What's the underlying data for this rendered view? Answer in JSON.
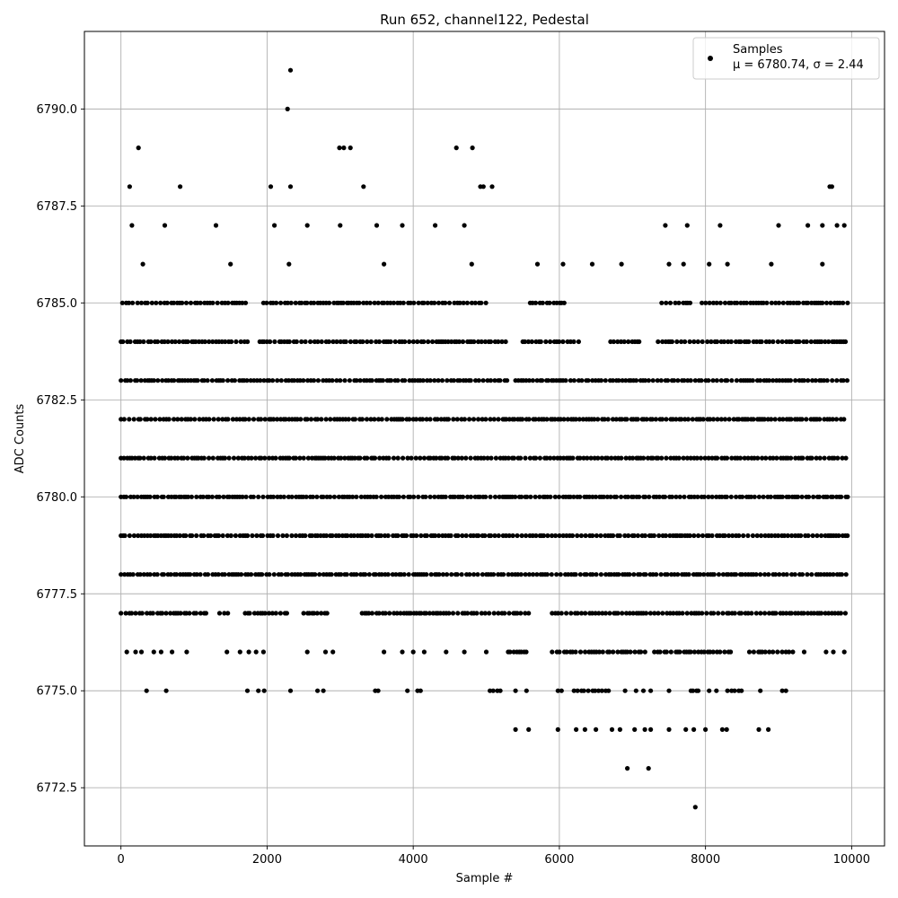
{
  "chart_data": {
    "type": "scatter",
    "title": "Run 652, channel122, Pedestal",
    "xlabel": "Sample #",
    "ylabel": "ADC Counts",
    "xlim": [
      -500,
      10450
    ],
    "ylim": [
      6771.0,
      6792.0
    ],
    "xticks": [
      0,
      2000,
      4000,
      6000,
      8000,
      10000
    ],
    "yticks": [
      6772.5,
      6775.0,
      6777.5,
      6780.0,
      6782.5,
      6785.0,
      6787.5,
      6790.0
    ],
    "xtick_labels": [
      "0",
      "2000",
      "4000",
      "6000",
      "8000",
      "10000"
    ],
    "ytick_labels": [
      "6772.5",
      "6775.0",
      "6777.5",
      "6780.0",
      "6782.5",
      "6785.0",
      "6787.5",
      "6790.0"
    ],
    "grid": true,
    "legend": {
      "placement": "top-right",
      "entry": "Samples",
      "stats_label": "μ = 6780.74, σ = 2.44"
    },
    "marker_color": "#000000",
    "series": [
      {
        "name": "Samples",
        "dense_levels": [
          {
            "y": 6785,
            "x_ranges": [
              [
                20,
                1750
              ],
              [
                1950,
                5000
              ],
              [
                5600,
                6100
              ],
              [
                7400,
                7800
              ],
              [
                7950,
                9950
              ]
            ]
          },
          {
            "y": 6784,
            "x_ranges": [
              [
                0,
                1750
              ],
              [
                1900,
                5300
              ],
              [
                5500,
                6300
              ],
              [
                6700,
                7100
              ],
              [
                7350,
                9950
              ]
            ]
          },
          {
            "y": 6783,
            "x_ranges": [
              [
                0,
                5300
              ],
              [
                5400,
                9950
              ]
            ]
          },
          {
            "y": 6782,
            "x_ranges": [
              [
                0,
                9950
              ]
            ]
          },
          {
            "y": 6781,
            "x_ranges": [
              [
                0,
                9950
              ]
            ]
          },
          {
            "y": 6780,
            "x_ranges": [
              [
                0,
                9950
              ]
            ]
          },
          {
            "y": 6779,
            "x_ranges": [
              [
                0,
                9950
              ]
            ]
          },
          {
            "y": 6778,
            "x_ranges": [
              [
                0,
                9950
              ]
            ]
          },
          {
            "y": 6777,
            "x_ranges": [
              [
                0,
                1200
              ],
              [
                1350,
                1500
              ],
              [
                1700,
                2300
              ],
              [
                2500,
                2850
              ],
              [
                3300,
                5600
              ],
              [
                5900,
                9950
              ]
            ]
          },
          {
            "y": 6776,
            "x_ranges": [
              [
                5300,
                5600
              ],
              [
                5900,
                7200
              ],
              [
                7300,
                8400
              ],
              [
                8600,
                9200
              ]
            ]
          },
          {
            "y": 6775,
            "x_ranges": [
              [
                5050,
                5200
              ],
              [
                6200,
                6700
              ],
              [
                7800,
                7950
              ],
              [
                8300,
                8500
              ]
            ]
          }
        ],
        "points": [
          {
            "x": 300,
            "y": 6786
          },
          {
            "x": 1500,
            "y": 6786
          },
          {
            "x": 2300,
            "y": 6786
          },
          {
            "x": 3600,
            "y": 6786
          },
          {
            "x": 4800,
            "y": 6786
          },
          {
            "x": 5700,
            "y": 6786
          },
          {
            "x": 6050,
            "y": 6786
          },
          {
            "x": 6450,
            "y": 6786
          },
          {
            "x": 6850,
            "y": 6786
          },
          {
            "x": 7500,
            "y": 6786
          },
          {
            "x": 7700,
            "y": 6786
          },
          {
            "x": 8050,
            "y": 6786
          },
          {
            "x": 8300,
            "y": 6786
          },
          {
            "x": 8900,
            "y": 6786
          },
          {
            "x": 9600,
            "y": 6786
          },
          {
            "x": 150,
            "y": 6787
          },
          {
            "x": 600,
            "y": 6787
          },
          {
            "x": 1300,
            "y": 6787
          },
          {
            "x": 2100,
            "y": 6787
          },
          {
            "x": 2550,
            "y": 6787
          },
          {
            "x": 3000,
            "y": 6787
          },
          {
            "x": 3500,
            "y": 6787
          },
          {
            "x": 3850,
            "y": 6787
          },
          {
            "x": 4300,
            "y": 6787
          },
          {
            "x": 4700,
            "y": 6787
          },
          {
            "x": 7450,
            "y": 6787
          },
          {
            "x": 7750,
            "y": 6787
          },
          {
            "x": 8200,
            "y": 6787
          },
          {
            "x": 9000,
            "y": 6787
          },
          {
            "x": 9400,
            "y": 6787
          },
          {
            "x": 9600,
            "y": 6787
          },
          {
            "x": 9800,
            "y": 6787
          },
          {
            "x": 9900,
            "y": 6787
          },
          {
            "x": 120,
            "y": 6788
          },
          {
            "x": 810,
            "y": 6788
          },
          {
            "x": 2050,
            "y": 6788
          },
          {
            "x": 2320,
            "y": 6788
          },
          {
            "x": 3320,
            "y": 6788
          },
          {
            "x": 4920,
            "y": 6788
          },
          {
            "x": 4960,
            "y": 6788
          },
          {
            "x": 5080,
            "y": 6788
          },
          {
            "x": 9700,
            "y": 6788
          },
          {
            "x": 9730,
            "y": 6788
          },
          {
            "x": 240,
            "y": 6789
          },
          {
            "x": 2990,
            "y": 6789
          },
          {
            "x": 3050,
            "y": 6789
          },
          {
            "x": 3140,
            "y": 6789
          },
          {
            "x": 4590,
            "y": 6789
          },
          {
            "x": 4810,
            "y": 6789
          },
          {
            "x": 2280,
            "y": 6790
          },
          {
            "x": 2320,
            "y": 6791
          },
          {
            "x": 350,
            "y": 6775
          },
          {
            "x": 620,
            "y": 6775
          },
          {
            "x": 1730,
            "y": 6775
          },
          {
            "x": 1880,
            "y": 6775
          },
          {
            "x": 1960,
            "y": 6775
          },
          {
            "x": 2320,
            "y": 6775
          },
          {
            "x": 2690,
            "y": 6775
          },
          {
            "x": 2770,
            "y": 6775
          },
          {
            "x": 3480,
            "y": 6775
          },
          {
            "x": 3520,
            "y": 6775
          },
          {
            "x": 3920,
            "y": 6775
          },
          {
            "x": 4060,
            "y": 6775
          },
          {
            "x": 4100,
            "y": 6775
          },
          {
            "x": 5400,
            "y": 6775
          },
          {
            "x": 5550,
            "y": 6775
          },
          {
            "x": 5980,
            "y": 6775
          },
          {
            "x": 6030,
            "y": 6775
          },
          {
            "x": 6900,
            "y": 6775
          },
          {
            "x": 7050,
            "y": 6775
          },
          {
            "x": 7150,
            "y": 6775
          },
          {
            "x": 7250,
            "y": 6775
          },
          {
            "x": 7500,
            "y": 6775
          },
          {
            "x": 8050,
            "y": 6775
          },
          {
            "x": 8150,
            "y": 6775
          },
          {
            "x": 8750,
            "y": 6775
          },
          {
            "x": 9050,
            "y": 6775
          },
          {
            "x": 9100,
            "y": 6775
          },
          {
            "x": 80,
            "y": 6776
          },
          {
            "x": 200,
            "y": 6776
          },
          {
            "x": 280,
            "y": 6776
          },
          {
            "x": 450,
            "y": 6776
          },
          {
            "x": 550,
            "y": 6776
          },
          {
            "x": 700,
            "y": 6776
          },
          {
            "x": 900,
            "y": 6776
          },
          {
            "x": 1450,
            "y": 6776
          },
          {
            "x": 1630,
            "y": 6776
          },
          {
            "x": 1750,
            "y": 6776
          },
          {
            "x": 1850,
            "y": 6776
          },
          {
            "x": 1950,
            "y": 6776
          },
          {
            "x": 2550,
            "y": 6776
          },
          {
            "x": 2800,
            "y": 6776
          },
          {
            "x": 2900,
            "y": 6776
          },
          {
            "x": 3600,
            "y": 6776
          },
          {
            "x": 3850,
            "y": 6776
          },
          {
            "x": 4000,
            "y": 6776
          },
          {
            "x": 4150,
            "y": 6776
          },
          {
            "x": 4450,
            "y": 6776
          },
          {
            "x": 4700,
            "y": 6776
          },
          {
            "x": 5000,
            "y": 6776
          },
          {
            "x": 9350,
            "y": 6776
          },
          {
            "x": 9650,
            "y": 6776
          },
          {
            "x": 9750,
            "y": 6776
          },
          {
            "x": 9900,
            "y": 6776
          },
          {
            "x": 5400,
            "y": 6774
          },
          {
            "x": 5580,
            "y": 6774
          },
          {
            "x": 5980,
            "y": 6774
          },
          {
            "x": 6230,
            "y": 6774
          },
          {
            "x": 6350,
            "y": 6774
          },
          {
            "x": 6500,
            "y": 6774
          },
          {
            "x": 6720,
            "y": 6774
          },
          {
            "x": 6830,
            "y": 6774
          },
          {
            "x": 7030,
            "y": 6774
          },
          {
            "x": 7170,
            "y": 6774
          },
          {
            "x": 7250,
            "y": 6774
          },
          {
            "x": 7500,
            "y": 6774
          },
          {
            "x": 7730,
            "y": 6774
          },
          {
            "x": 7840,
            "y": 6774
          },
          {
            "x": 8000,
            "y": 6774
          },
          {
            "x": 8230,
            "y": 6774
          },
          {
            "x": 8290,
            "y": 6774
          },
          {
            "x": 8730,
            "y": 6774
          },
          {
            "x": 8860,
            "y": 6774
          },
          {
            "x": 6930,
            "y": 6773
          },
          {
            "x": 7220,
            "y": 6773
          },
          {
            "x": 7860,
            "y": 6772
          }
        ]
      }
    ]
  }
}
